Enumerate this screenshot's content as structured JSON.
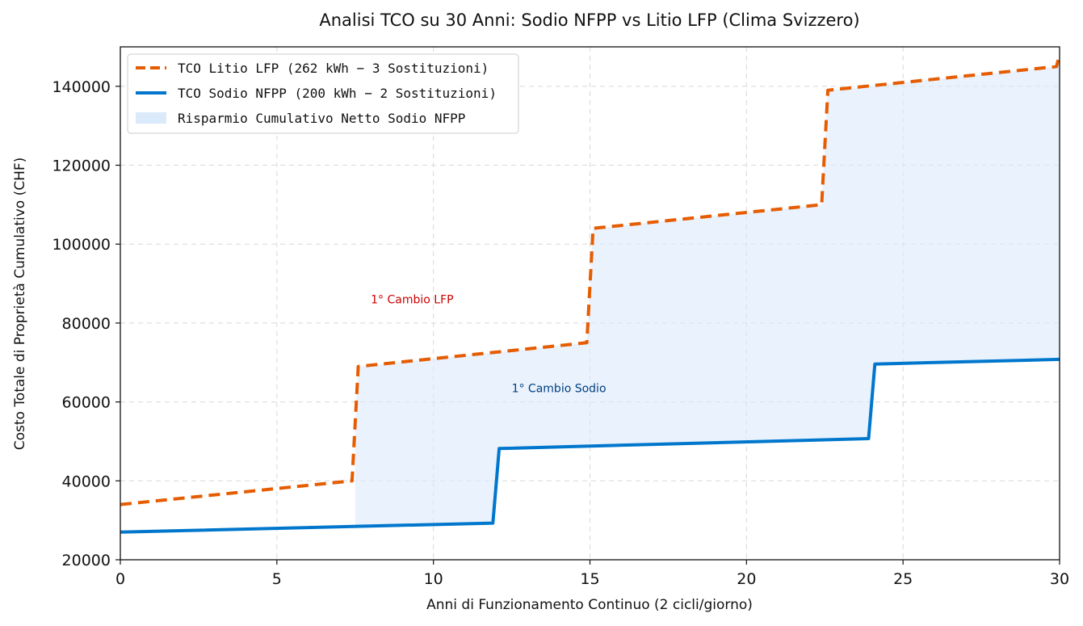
{
  "chart_data": {
    "type": "line",
    "title": "Analisi TCO su 30 Anni: Sodio NFPP vs Litio LFP (Clima Svizzero)",
    "xlabel": "Anni di Funzionamento Continuo (2 cicli/giorno)",
    "ylabel": "Costo Totale di Proprietà Cumulativo (CHF)",
    "xlim": [
      0,
      30
    ],
    "ylim": [
      20000,
      150000
    ],
    "xticks": [
      0,
      5,
      10,
      15,
      20,
      25,
      30
    ],
    "yticks": [
      20000,
      40000,
      60000,
      80000,
      100000,
      120000,
      140000
    ],
    "grid": true,
    "legend_position": "top-left",
    "series": [
      {
        "name": "TCO Litio LFP (262 kWh − 3 Sostituzioni)",
        "color": "#e65c00",
        "style": "dashed",
        "x": [
          0,
          7.4,
          7.6,
          14.9,
          15.1,
          22.4,
          22.6,
          29.9,
          30
        ],
        "y": [
          34000,
          40000,
          69000,
          75000,
          104000,
          110000,
          139000,
          145000,
          148000
        ]
      },
      {
        "name": "TCO Sodio NFPP (200 kWh − 2 Sostituzioni)",
        "color": "#0077cc",
        "style": "solid",
        "x": [
          0,
          11.9,
          12.1,
          23.9,
          24.1,
          30
        ],
        "y": [
          27000,
          29300,
          48200,
          50700,
          69600,
          70800
        ]
      }
    ],
    "fill": {
      "name": "Risparmio Cumulativo Netto Sodio NFPP",
      "color": "#dbeafb",
      "from_x": 7.5
    },
    "annotations": [
      {
        "text": "1° Cambio LFP",
        "x": 8,
        "y": 85000,
        "color": "#cc0000"
      },
      {
        "text": "1° Cambio Sodio",
        "x": 12.5,
        "y": 62500,
        "color": "#003e80"
      }
    ]
  }
}
